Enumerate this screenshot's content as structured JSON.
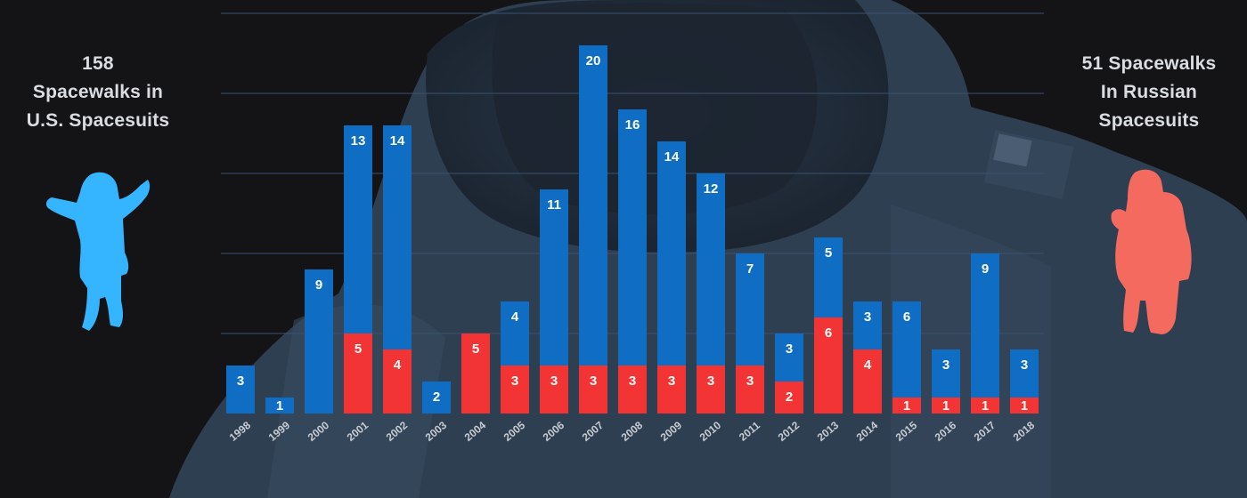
{
  "left_caption": {
    "line1": "158",
    "line2": "Spacewalks in",
    "line3": "U.S. Spacesuits"
  },
  "right_caption": {
    "line1": "51 Spacewalks",
    "line2": "In Russian",
    "line3": "Spacesuits"
  },
  "colors": {
    "us": "#0f6ec4",
    "russian": "#f23434",
    "us_icon": "#35b5ff",
    "russian_icon": "#f56a5e"
  },
  "icons": {
    "left": "astronaut-silhouette-icon",
    "right": "russian-spacesuit-silhouette-icon"
  },
  "chart_data": {
    "type": "bar",
    "stacked": true,
    "categories": [
      "1998",
      "1999",
      "2000",
      "2001",
      "2002",
      "2003",
      "2004",
      "2005",
      "2006",
      "2007",
      "2008",
      "2009",
      "2010",
      "2011",
      "2012",
      "2013",
      "2014",
      "2015",
      "2016",
      "2017",
      "2018"
    ],
    "series": [
      {
        "name": "Russian Spacesuits",
        "color": "#f23434",
        "values": [
          0,
          0,
          0,
          5,
          4,
          0,
          5,
          3,
          3,
          3,
          3,
          3,
          3,
          3,
          2,
          6,
          4,
          1,
          1,
          1,
          1
        ]
      },
      {
        "name": "U.S. Spacesuits",
        "color": "#0f6ec4",
        "values": [
          3,
          1,
          9,
          13,
          14,
          2,
          0,
          4,
          11,
          20,
          16,
          14,
          12,
          7,
          3,
          5,
          3,
          6,
          3,
          9,
          3
        ]
      }
    ],
    "ylim": [
      0,
      25
    ],
    "grid": true,
    "legend": "none",
    "xlabel": "",
    "ylabel": ""
  }
}
